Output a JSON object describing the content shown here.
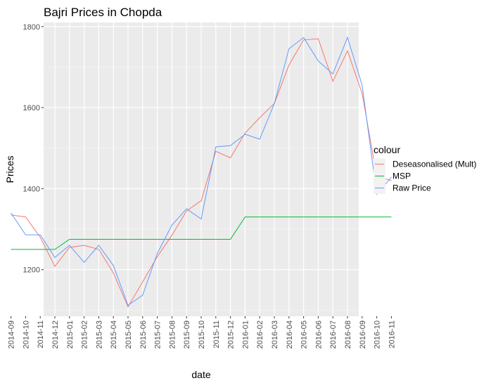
{
  "chart_data": {
    "type": "line",
    "title": "Bajri Prices in Chopda",
    "xlabel": "date",
    "ylabel": "Prices",
    "ylim": [
      1085,
      1810
    ],
    "yticks": [
      1200,
      1400,
      1600,
      1800
    ],
    "grid": true,
    "legend": {
      "title": "colour",
      "position": "right"
    },
    "categories": [
      "2014-09",
      "2014-10",
      "2014-11",
      "2014-12",
      "2015-01",
      "2015-02",
      "2015-03",
      "2015-04",
      "2015-05",
      "2015-06",
      "2015-07",
      "2015-08",
      "2015-09",
      "2015-10",
      "2015-11",
      "2015-12",
      "2016-01",
      "2016-02",
      "2016-03",
      "2016-04",
      "2016-05",
      "2016-06",
      "2016-07",
      "2016-08",
      "2016-09",
      "2016-10",
      "2016-11"
    ],
    "series": [
      {
        "name": "Deseasonalised (Mult)",
        "color": "#F8766D",
        "values": [
          1335,
          1330,
          1280,
          1208,
          1255,
          1260,
          1250,
          1192,
          1108,
          1170,
          1232,
          1285,
          1345,
          1370,
          1492,
          1476,
          1537,
          1575,
          1610,
          1705,
          1767,
          1770,
          1665,
          1740,
          1635,
          1430,
          1420
        ]
      },
      {
        "name": "MSP",
        "color": "#00BA38",
        "values": [
          1250,
          1250,
          1250,
          1250,
          1275,
          1275,
          1275,
          1275,
          1275,
          1275,
          1275,
          1275,
          1275,
          1275,
          1275,
          1275,
          1330,
          1330,
          1330,
          1330,
          1330,
          1330,
          1330,
          1330,
          1330,
          1330,
          1330
        ]
      },
      {
        "name": "Raw Price",
        "color": "#619CFF",
        "values": [
          1340,
          1286,
          1286,
          1230,
          1260,
          1218,
          1260,
          1210,
          1112,
          1137,
          1240,
          1310,
          1350,
          1325,
          1503,
          1506,
          1534,
          1522,
          1610,
          1745,
          1773,
          1715,
          1683,
          1773,
          1655,
          1386,
          1428
        ]
      }
    ]
  }
}
